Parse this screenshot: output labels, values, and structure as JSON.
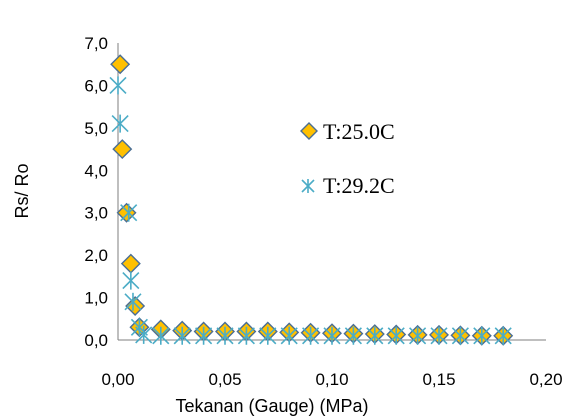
{
  "chart_data": {
    "type": "scatter",
    "title": "",
    "xlabel": "Tekanan (Gauge) (MPa)",
    "ylabel": "Rs/ Ro",
    "xlim": [
      0,
      0.2
    ],
    "ylim": [
      0,
      7
    ],
    "x_ticks": [
      "0,00",
      "0,05",
      "0,10",
      "0,15",
      "0,20"
    ],
    "y_ticks": [
      "0,0",
      "1,0",
      "2,0",
      "3,0",
      "4,0",
      "5,0",
      "6,0",
      "7,0"
    ],
    "grid": false,
    "legend_position": "center-right",
    "series": [
      {
        "name": "T:25.0C",
        "marker": "diamond",
        "color": "#FFC000",
        "edge_color": "#4A6E94",
        "points": [
          [
            0.001,
            6.5
          ],
          [
            0.002,
            4.5
          ],
          [
            0.004,
            3.0
          ],
          [
            0.006,
            1.8
          ],
          [
            0.008,
            0.8
          ],
          [
            0.01,
            0.3
          ],
          [
            0.02,
            0.25
          ],
          [
            0.03,
            0.22
          ],
          [
            0.04,
            0.2
          ],
          [
            0.05,
            0.2
          ],
          [
            0.06,
            0.2
          ],
          [
            0.07,
            0.2
          ],
          [
            0.08,
            0.18
          ],
          [
            0.09,
            0.17
          ],
          [
            0.1,
            0.16
          ],
          [
            0.11,
            0.15
          ],
          [
            0.12,
            0.14
          ],
          [
            0.13,
            0.13
          ],
          [
            0.14,
            0.12
          ],
          [
            0.15,
            0.12
          ],
          [
            0.16,
            0.11
          ],
          [
            0.17,
            0.1
          ],
          [
            0.18,
            0.1
          ]
        ]
      },
      {
        "name": "T:29.2C",
        "marker": "star",
        "color": "#4BACC6",
        "points": [
          [
            0.0,
            6.0
          ],
          [
            0.001,
            5.1
          ],
          [
            0.005,
            3.0
          ],
          [
            0.006,
            1.4
          ],
          [
            0.007,
            0.9
          ],
          [
            0.01,
            0.3
          ],
          [
            0.012,
            0.12
          ],
          [
            0.02,
            0.1
          ],
          [
            0.03,
            0.1
          ],
          [
            0.04,
            0.1
          ],
          [
            0.05,
            0.1
          ],
          [
            0.06,
            0.1
          ],
          [
            0.07,
            0.1
          ],
          [
            0.08,
            0.1
          ],
          [
            0.09,
            0.1
          ],
          [
            0.1,
            0.1
          ],
          [
            0.11,
            0.1
          ],
          [
            0.12,
            0.1
          ],
          [
            0.13,
            0.1
          ],
          [
            0.14,
            0.1
          ],
          [
            0.15,
            0.1
          ],
          [
            0.16,
            0.1
          ],
          [
            0.17,
            0.1
          ],
          [
            0.18,
            0.1
          ]
        ]
      }
    ]
  }
}
